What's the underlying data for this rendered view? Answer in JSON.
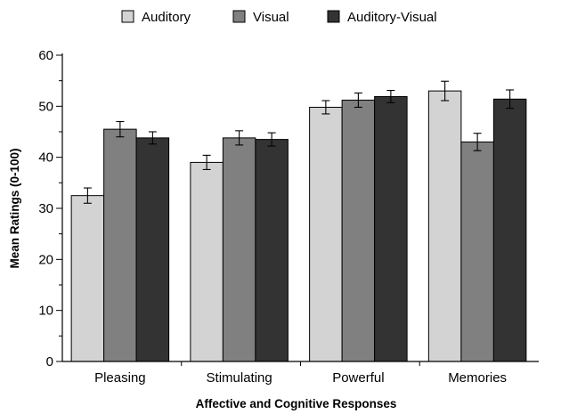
{
  "chart_data": {
    "type": "bar",
    "title": "",
    "xlabel": "Affective and Cognitive Responses",
    "ylabel": "Mean Ratings (0-100)",
    "ylim": [
      0,
      60
    ],
    "yticks": [
      "0",
      "10",
      "20",
      "30",
      "40",
      "50",
      "60"
    ],
    "categories": [
      "Pleasing",
      "Stimulating",
      "Powerful",
      "Memories"
    ],
    "legend_position": "top",
    "grid": false,
    "series": [
      {
        "name": "Auditory",
        "color": "#d3d3d3",
        "values": [
          32.5,
          39.0,
          49.8,
          53.0
        ],
        "errors": [
          1.5,
          1.4,
          1.3,
          1.9
        ]
      },
      {
        "name": "Visual",
        "color": "#808080",
        "values": [
          45.5,
          43.8,
          51.2,
          43.0
        ],
        "errors": [
          1.5,
          1.4,
          1.4,
          1.7
        ]
      },
      {
        "name": "Auditory-Visual",
        "color": "#333333",
        "values": [
          43.8,
          43.5,
          51.9,
          51.4
        ],
        "errors": [
          1.2,
          1.3,
          1.2,
          1.8
        ]
      }
    ]
  }
}
